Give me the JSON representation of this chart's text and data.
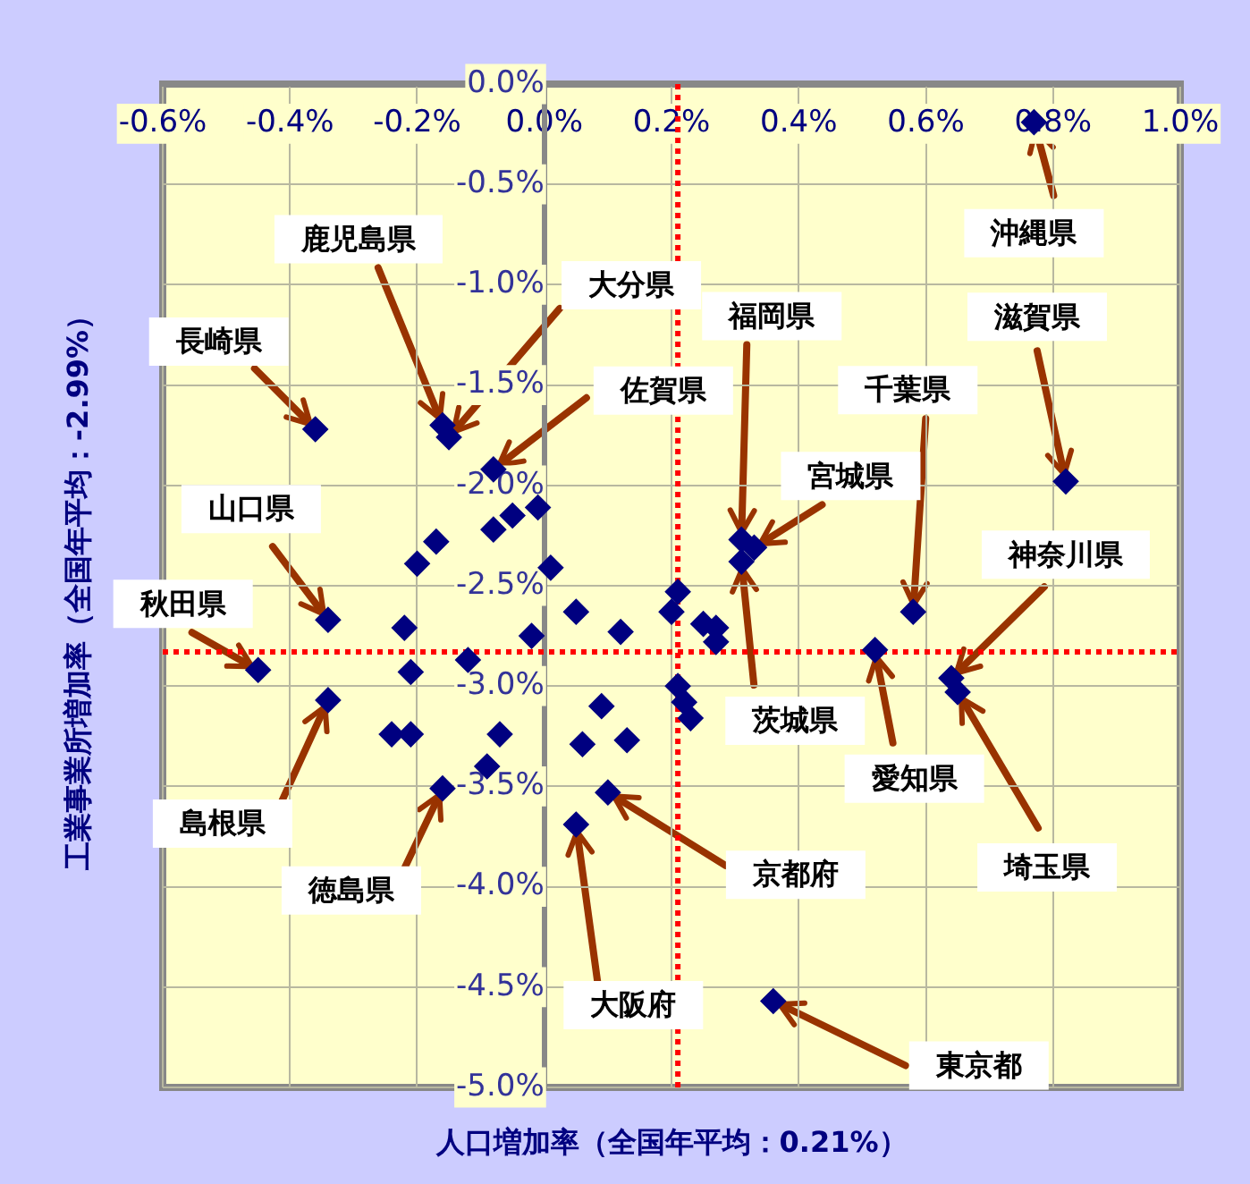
{
  "chart_data": {
    "type": "scatter",
    "xlabel": "人口増加率（全国年平均：0.21%）",
    "ylabel": "工業事業所増加率（全国年平均：-2.99%）",
    "x": [
      -0.36,
      -0.16,
      -0.15,
      -0.08,
      -0.01,
      -0.05,
      -0.08,
      -0.17,
      -0.2,
      0.01,
      -0.34,
      -0.22,
      -0.02,
      0.05,
      0.12,
      0.2,
      0.21,
      -0.45,
      -0.12,
      -0.21,
      -0.34,
      -0.24,
      -0.21,
      -0.07,
      -0.09,
      -0.16,
      0.09,
      0.06,
      0.13,
      0.1,
      0.05,
      0.21,
      0.25,
      0.27,
      0.27,
      0.58,
      0.52,
      0.64,
      0.65,
      0.22,
      0.23,
      0.36,
      0.77,
      0.82,
      0.31,
      0.33,
      0.31
    ],
    "series": [
      {
        "color": "#000080",
        "values": [
          -1.72,
          -1.7,
          -1.76,
          -1.92,
          -2.11,
          -2.15,
          -2.22,
          -2.28,
          -2.39,
          -2.41,
          -2.67,
          -2.71,
          -2.75,
          -2.63,
          -2.73,
          -2.63,
          -2.53,
          -2.92,
          -2.87,
          -2.93,
          -3.07,
          -3.24,
          -3.24,
          -3.24,
          -3.4,
          -3.51,
          -3.1,
          -3.29,
          -3.27,
          -3.53,
          -3.69,
          -3.0,
          -2.69,
          -2.71,
          -2.78,
          -2.63,
          -2.82,
          -2.96,
          -3.03,
          -3.08,
          -3.16,
          -4.57,
          -0.19,
          -1.98,
          -2.27,
          -2.31,
          -2.38
        ]
      }
    ],
    "marker": "diamond",
    "grid": true,
    "legend": false,
    "xlim": [
      -0.6,
      1.0
    ],
    "xticks": [
      {
        "value": -0.6,
        "label": "-0.6%"
      },
      {
        "value": -0.4,
        "label": "-0.4%"
      },
      {
        "value": -0.2,
        "label": "-0.2%"
      },
      {
        "value": 0,
        "label": "0.0%"
      },
      {
        "value": 0.2,
        "label": "0.2%"
      },
      {
        "value": 0.4,
        "label": "0.4%"
      },
      {
        "value": 0.6,
        "label": "0.6%"
      },
      {
        "value": 0.8,
        "label": "0.8%"
      },
      {
        "value": 1.0,
        "label": "1.0%"
      }
    ],
    "ylim": [
      -5.0,
      0
    ],
    "yticks": [
      {
        "value": 0,
        "label": "0.0%"
      },
      {
        "value": -0.5,
        "label": "-0.5%"
      },
      {
        "value": -1.0,
        "label": "-1.0%"
      },
      {
        "value": -1.5,
        "label": "-1.5%"
      },
      {
        "value": -2.0,
        "label": "-2.0%"
      },
      {
        "value": -2.5,
        "label": "-2.5%"
      },
      {
        "value": -3.0,
        "label": "-3.0%"
      },
      {
        "value": -3.5,
        "label": "-3.5%"
      },
      {
        "value": -4.0,
        "label": "-4.0%"
      },
      {
        "value": -4.5,
        "label": "-4.5%"
      },
      {
        "value": -5.0,
        "label": "-5.0%"
      }
    ],
    "ref_lines": [
      {
        "axis": "x",
        "value": 0.21,
        "color": "#ff0000",
        "line_style": "dotted"
      },
      {
        "axis": "y",
        "value": -2.83,
        "color": "#ff0000",
        "line_style": "dotted"
      }
    ],
    "annotations": [
      {
        "text": "長崎県",
        "x": -0.36,
        "y": -1.72
      },
      {
        "text": "鹿児島県",
        "x": -0.16,
        "y": -1.7
      },
      {
        "text": "大分県",
        "x": -0.15,
        "y": -1.76
      },
      {
        "text": "佐賀県",
        "x": -0.08,
        "y": -1.92
      },
      {
        "text": "山口県",
        "x": -0.34,
        "y": -2.67
      },
      {
        "text": "秋田県",
        "x": -0.45,
        "y": -2.92
      },
      {
        "text": "島根県",
        "x": -0.34,
        "y": -3.07
      },
      {
        "text": "徳島県",
        "x": -0.16,
        "y": -3.51
      },
      {
        "text": "京都府",
        "x": 0.1,
        "y": -3.53
      },
      {
        "text": "大阪府",
        "x": 0.05,
        "y": -3.69
      },
      {
        "text": "千葉県",
        "x": 0.58,
        "y": -2.63
      },
      {
        "text": "愛知県",
        "x": 0.52,
        "y": -2.82
      },
      {
        "text": "神奈川県",
        "x": 0.64,
        "y": -2.96
      },
      {
        "text": "埼玉県",
        "x": 0.65,
        "y": -3.03
      },
      {
        "text": "東京都",
        "x": 0.36,
        "y": -4.57
      },
      {
        "text": "沖縄県",
        "x": 0.77,
        "y": -0.19
      },
      {
        "text": "滋賀県",
        "x": 0.82,
        "y": -1.98
      },
      {
        "text": "福岡県",
        "x": 0.31,
        "y": -2.27
      },
      {
        "text": "宮城県",
        "x": 0.33,
        "y": -2.31
      },
      {
        "text": "茨城県",
        "x": 0.31,
        "y": -2.38
      }
    ]
  }
}
